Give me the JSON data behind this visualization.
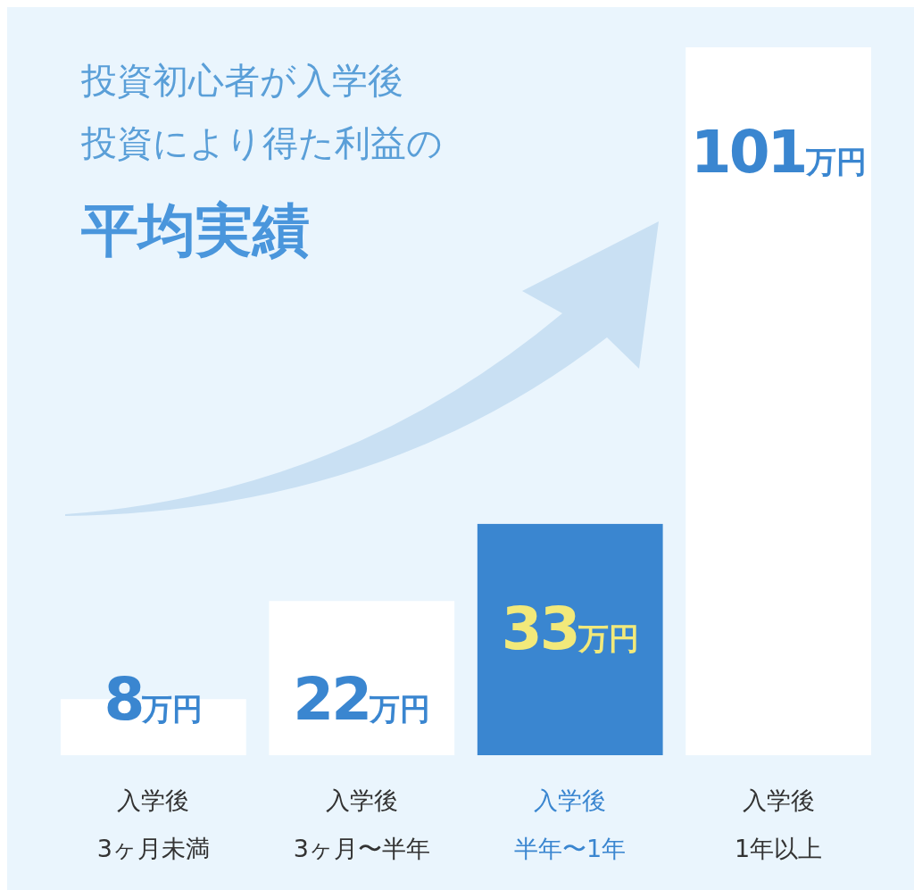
{
  "chart_data": {
    "type": "bar",
    "title": "投資初心者が入学後投資により得た利益の",
    "subtitle": "平均実績",
    "categories": [
      "入学後3ヶ月未満",
      "入学後3ヶ月〜半年",
      "入学後半年〜1年",
      "入学後1年以上"
    ],
    "values": [
      8,
      22,
      33,
      101
    ],
    "colors": [
      "#ffffff",
      "#ffffff",
      "#3a86d0",
      "#ffffff"
    ],
    "value_labels": [
      "8万円",
      "22万円",
      "33万円",
      "101万円"
    ]
  }
}
